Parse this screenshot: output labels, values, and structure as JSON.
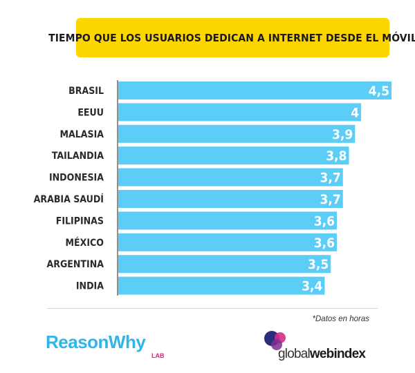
{
  "title": "TIEMPO QUE LOS USUARIOS DEDICAN A INTERNET DESDE EL MÓVIL",
  "footnote": "*Datos en horas",
  "logos": {
    "reasonwhy_name": "ReasonWhy",
    "reasonwhy_sub": "LAB",
    "gwi_part1": "global",
    "gwi_part2": "webindex"
  },
  "colors": {
    "title_bg": "#fdd600",
    "bar": "#5ccdf6",
    "reasonwhy": "#2fb5e9",
    "reasonwhy_sub": "#d6257a"
  },
  "chart_data": {
    "type": "bar",
    "orientation": "horizontal",
    "title": "TIEMPO QUE LOS USUARIOS DEDICAN A INTERNET DESDE EL MÓVIL",
    "categories": [
      "BRASIL",
      "EEUU",
      "MALASIA",
      "TAILANDIA",
      "INDONESIA",
      "ARABIA SAUDÍ",
      "FILIPINAS",
      "MÉXICO",
      "ARGENTINA",
      "INDIA"
    ],
    "values": [
      4.5,
      4,
      3.9,
      3.8,
      3.7,
      3.7,
      3.6,
      3.6,
      3.5,
      3.4
    ],
    "data_labels": [
      "4,5",
      "4",
      "3,9",
      "3,8",
      "3,7",
      "3,7",
      "3,6",
      "3,6",
      "3,5",
      "3,4"
    ],
    "xlim": [
      0,
      4.5
    ],
    "grid": false,
    "legend": "none"
  }
}
